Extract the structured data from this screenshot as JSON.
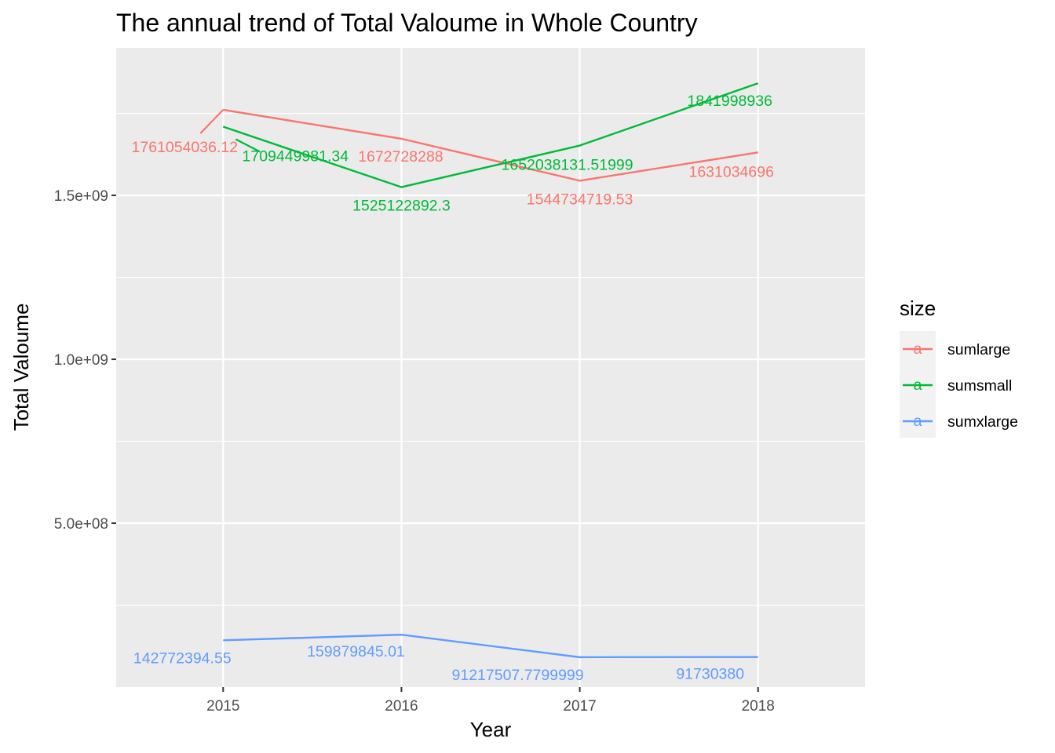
{
  "chart_data": {
    "type": "line",
    "title": "The annual trend of Total Valoume in Whole Country",
    "xlabel": "Year",
    "ylabel": "Total Valoume",
    "x": [
      2015,
      2016,
      2017,
      2018
    ],
    "xlim": [
      2014.4,
      2018.6
    ],
    "ylim": [
      0,
      1950000000
    ],
    "y_ticks": [
      500000000,
      1000000000,
      1500000000
    ],
    "y_tick_labels": [
      "5.0e+08",
      "1.0e+09",
      "1.5e+09"
    ],
    "x_tick_labels": [
      "2015",
      "2016",
      "2017",
      "2018"
    ],
    "grid": true,
    "legend": {
      "title": "size",
      "position": "right",
      "key_glyph": "a"
    },
    "series": [
      {
        "name": "sumlarge",
        "color": "#F8766D",
        "values": [
          1761054036.12,
          1672728288,
          1544734719.53,
          1631034696
        ],
        "labels": [
          "1761054036.12",
          "1672728288",
          "1544734719.53",
          "1631034696"
        ]
      },
      {
        "name": "sumsmall",
        "color": "#00BA38",
        "values": [
          1709449981.34,
          1525122892.3,
          1652038131.51999,
          1841998936
        ],
        "labels": [
          "1709449981.34",
          "1525122892.3",
          "1652038131.51999",
          "1841998936"
        ]
      },
      {
        "name": "sumxlarge",
        "color": "#619CFF",
        "values": [
          142772394.55,
          159879845.01,
          91217507.7799999,
          91730380
        ],
        "labels": [
          "142772394.55",
          "159879845.01",
          "91217507.7799999",
          "91730380"
        ]
      }
    ]
  }
}
